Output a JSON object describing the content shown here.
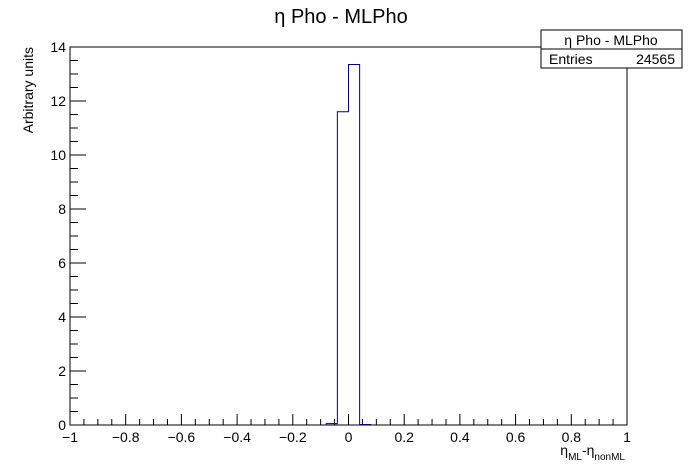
{
  "chart_data": {
    "type": "histogram",
    "title": "η Pho - MLPho",
    "ylabel": "Arbitrary units",
    "xlabel": {
      "main1": "η",
      "sub1": "ML",
      "sep": "-η",
      "sub2": "nonML"
    },
    "xlim": [
      -1,
      1
    ],
    "ylim": [
      0,
      14
    ],
    "x_ticks": [
      -1,
      -0.8,
      -0.6,
      -0.4,
      -0.2,
      0,
      0.2,
      0.4,
      0.6,
      0.8,
      1
    ],
    "x_tick_labels": [
      "−1",
      "−0.8",
      "−0.6",
      "−0.4",
      "−0.2",
      "0",
      "0.2",
      "0.4",
      "0.6",
      "0.8",
      "1"
    ],
    "y_ticks": [
      0,
      2,
      4,
      6,
      8,
      10,
      12,
      14
    ],
    "y_tick_labels": [
      "0",
      "2",
      "4",
      "6",
      "8",
      "10",
      "12",
      "14"
    ],
    "grid": false,
    "bins": [
      {
        "x0": -0.08,
        "x1": -0.04,
        "value": 0.05
      },
      {
        "x0": -0.04,
        "x1": 0.0,
        "value": 11.6
      },
      {
        "x0": 0.0,
        "x1": 0.04,
        "value": 13.35
      },
      {
        "x0": 0.04,
        "x1": 0.08,
        "value": 0.02
      }
    ],
    "line_color": "#000080",
    "stats_box": {
      "title": "η Pho - MLPho",
      "entries_label": "Entries",
      "entries_value": "24565",
      "placement": "top-right"
    }
  }
}
